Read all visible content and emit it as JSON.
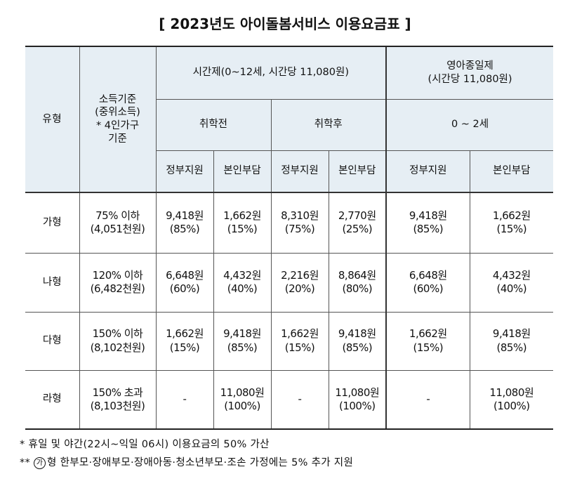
{
  "title": "[ 2023년도 아이돌봄서비스 이용요금표 ]",
  "header": {
    "type_label": "유형",
    "income_label": [
      "소득기준",
      "(중위소득)",
      "* 4인가구",
      "기준"
    ],
    "hourly_label": "시간제(0~12세, 시간당 11,080원)",
    "infant_label": [
      "영아종일제",
      "(시간당 11,080원)"
    ],
    "pre_school": "취학전",
    "post_school": "취학후",
    "infant_age": "0 ~ 2세",
    "gov_support": "정부지원",
    "self_pay": "본인부담"
  },
  "rows": [
    {
      "type": "가형",
      "income1": "75% 이하",
      "income2": "(4,051천원)",
      "cells": [
        [
          "9,418원",
          "(85%)"
        ],
        [
          "1,662원",
          "(15%)"
        ],
        [
          "8,310원",
          "(75%)"
        ],
        [
          "2,770원",
          "(25%)"
        ],
        [
          "9,418원",
          "(85%)"
        ],
        [
          "1,662원",
          "(15%)"
        ]
      ]
    },
    {
      "type": "나형",
      "income1": "120% 이하",
      "income2": "(6,482천원)",
      "cells": [
        [
          "6,648원",
          "(60%)"
        ],
        [
          "4,432원",
          "(40%)"
        ],
        [
          "2,216원",
          "(20%)"
        ],
        [
          "8,864원",
          "(80%)"
        ],
        [
          "6,648원",
          "(60%)"
        ],
        [
          "4,432원",
          "(40%)"
        ]
      ]
    },
    {
      "type": "다형",
      "income1": "150% 이하",
      "income2": "(8,102천원)",
      "cells": [
        [
          "1,662원",
          "(15%)"
        ],
        [
          "9,418원",
          "(85%)"
        ],
        [
          "1,662원",
          "(15%)"
        ],
        [
          "9,418원",
          "(85%)"
        ],
        [
          "1,662원",
          "(15%)"
        ],
        [
          "9,418원",
          "(85%)"
        ]
      ]
    },
    {
      "type": "라형",
      "income1": "150% 초과",
      "income2": "(8,103천원)",
      "cells": [
        [
          "-",
          ""
        ],
        [
          "11,080원",
          "(100%)"
        ],
        [
          "-",
          ""
        ],
        [
          "11,080원",
          "(100%)"
        ],
        [
          "-",
          ""
        ],
        [
          "11,080원",
          "(100%)"
        ]
      ]
    }
  ],
  "notes": {
    "note1": "* 휴일 및 야간(22시~익일 06시) 이용요금의 50% 가산",
    "note2_prefix": "** ",
    "note2_circle": "가",
    "note2_text": "형 한부모·장애부모·장애아동·청소년부모·조손 가정에는 5% 추가 지원"
  }
}
